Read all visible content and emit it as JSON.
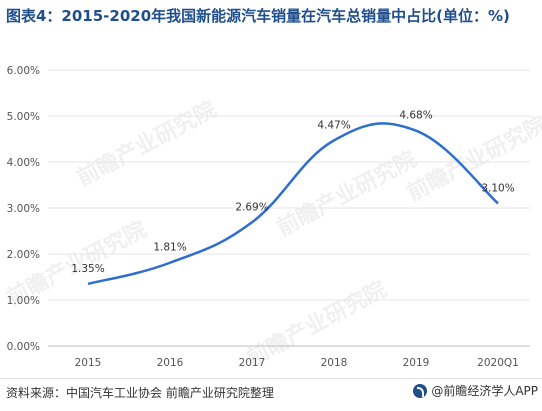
{
  "title": "图表4：2015-2020年我国新能源汽车销量在汽车总销量中占比(单位：%)",
  "source": "资料来源：中国汽车工业协会 前瞻产业研究院整理",
  "brand": "@前瞻经济学人APP",
  "watermark": "前瞻产业研究院",
  "colors": {
    "line": "#2e6ed0",
    "title": "#1f4e8c",
    "grid": "#e6e6e6"
  },
  "chart_data": {
    "type": "line",
    "categories": [
      "2015",
      "2016",
      "2017",
      "2018",
      "2019",
      "2020Q1"
    ],
    "values": [
      1.35,
      1.81,
      2.69,
      4.47,
      4.68,
      3.1
    ],
    "labels": [
      "1.35%",
      "1.81%",
      "2.69%",
      "4.47%",
      "4.68%",
      "3.10%"
    ],
    "yticks": [
      "0.00%",
      "1.00%",
      "2.00%",
      "3.00%",
      "4.00%",
      "5.00%",
      "6.00%"
    ],
    "ylim": [
      0,
      6
    ],
    "smooth": true,
    "grid": "horizontal"
  }
}
